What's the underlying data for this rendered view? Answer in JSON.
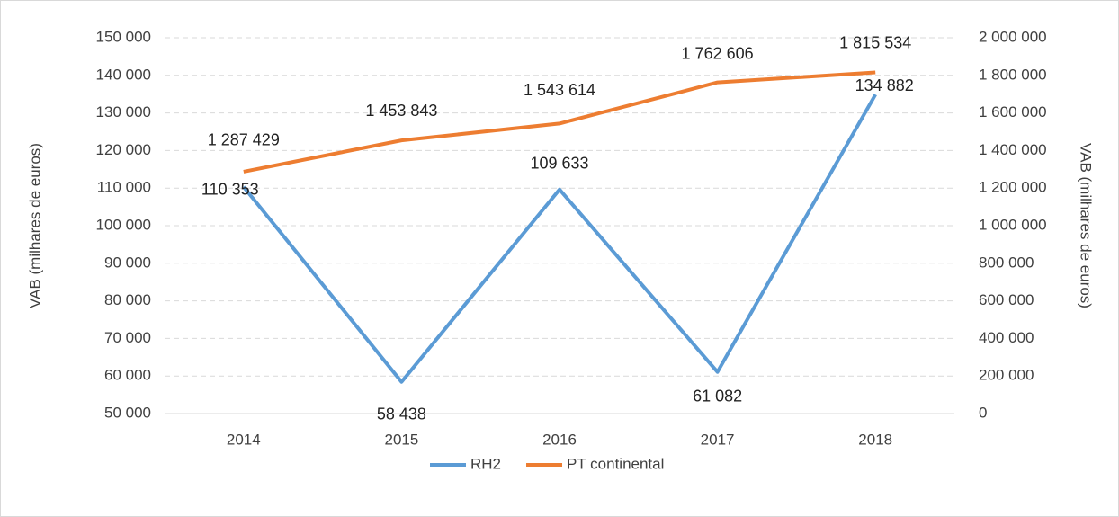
{
  "chart_data": {
    "type": "line",
    "categories": [
      "2014",
      "2015",
      "2016",
      "2017",
      "2018"
    ],
    "ylabel": "VAB (milhares de euros)",
    "y2label": "VAB (milhares de euros)",
    "ylim": [
      50000,
      150000
    ],
    "yticks": [
      {
        "value": 50000,
        "label": "50 000"
      },
      {
        "value": 60000,
        "label": "60 000"
      },
      {
        "value": 70000,
        "label": "70 000"
      },
      {
        "value": 80000,
        "label": "80 000"
      },
      {
        "value": 90000,
        "label": "90 000"
      },
      {
        "value": 100000,
        "label": "100 000"
      },
      {
        "value": 110000,
        "label": "110 000"
      },
      {
        "value": 120000,
        "label": "120 000"
      },
      {
        "value": 130000,
        "label": "130 000"
      },
      {
        "value": 140000,
        "label": "140 000"
      },
      {
        "value": 150000,
        "label": "150 000"
      }
    ],
    "y2lim": [
      0,
      2000000
    ],
    "y2ticks": [
      0,
      {
        "value": 200000,
        "label": "200 000"
      },
      {
        "value": 400000,
        "label": "400 000"
      },
      {
        "value": 600000,
        "label": "600 000"
      },
      {
        "value": 800000,
        "label": "800 000"
      },
      {
        "value": 1000000,
        "label": "1 000 000"
      },
      {
        "value": 1200000,
        "label": "1 200 000"
      },
      {
        "value": 1400000,
        "label": "1 400 000"
      },
      {
        "value": 1600000,
        "label": "1 600 000"
      },
      {
        "value": 1800000,
        "label": "1 800 000"
      },
      {
        "value": 2000000,
        "label": "2 000 000"
      }
    ],
    "grid": true,
    "legend": "bottom",
    "series": [
      {
        "name": "RH2",
        "color": "#5b9bd5",
        "values": [
          110353,
          58438,
          109633,
          61082,
          134882
        ],
        "value_labels": [
          "110 353",
          "58 438",
          "109 633",
          "61 082",
          "134 882"
        ]
      },
      {
        "name": "PT continental",
        "color": "#ed7d31",
        "axis": "y2",
        "values": [
          1287429,
          1453843,
          1543614,
          1762606,
          1815534
        ],
        "value_labels": [
          "1 287 429",
          "1 453 843",
          "1 543 614",
          "1 762 606",
          "1 815 534"
        ]
      }
    ]
  }
}
